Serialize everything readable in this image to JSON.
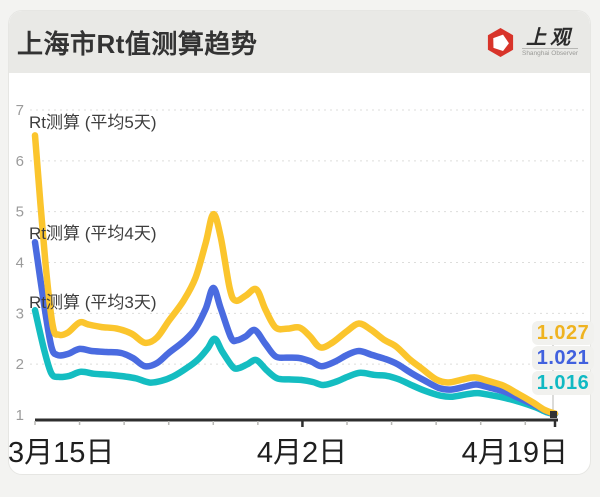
{
  "header": {
    "title": "上海市Rt值测算趋势",
    "logo": {
      "cn_text": "上观",
      "sub_text": "Shanghai Observer",
      "icon": "shanghai-observer-red-hexagon",
      "brand_color": "#d8342a"
    }
  },
  "chart_data": {
    "type": "line",
    "title": "上海市Rt值测算趋势",
    "x_axis": {
      "unit": "day index from 3月15日",
      "range_days": [
        0,
        35
      ],
      "labels": [
        "3月15日",
        "4月2日",
        "4月19日"
      ],
      "label_days": [
        0,
        18,
        35
      ],
      "minor_tick_days": [
        0,
        3,
        6,
        9,
        12,
        15,
        18,
        21,
        24,
        27,
        30,
        33
      ],
      "major_tick_days": [
        18,
        35
      ]
    },
    "y_axis": {
      "ticks": [
        1,
        2,
        3,
        4,
        5,
        6,
        7
      ],
      "range": [
        1,
        7
      ],
      "gridlines": "dashed, values 2-7",
      "grid_color": "#dddddb",
      "axis_color": "#2e2e2e",
      "tick_label_color": "#9b9b9b"
    },
    "end_marker_color": "#333333",
    "series": [
      {
        "name": "Rt测算 (平均5天)",
        "color": "#fbc52d",
        "label_color": "#efb320",
        "end_label": "1.027",
        "end_value": 1.027,
        "points": [
          [
            0,
            6.5
          ],
          [
            0.7,
            4.0
          ],
          [
            1.2,
            2.75
          ],
          [
            1.6,
            2.58
          ],
          [
            2.2,
            2.62
          ],
          [
            3.0,
            2.82
          ],
          [
            3.6,
            2.78
          ],
          [
            4.5,
            2.73
          ],
          [
            5.5,
            2.7
          ],
          [
            6.5,
            2.6
          ],
          [
            7.4,
            2.42
          ],
          [
            8.2,
            2.52
          ],
          [
            9.0,
            2.85
          ],
          [
            10.0,
            3.25
          ],
          [
            10.8,
            3.7
          ],
          [
            11.5,
            4.4
          ],
          [
            12.0,
            4.95
          ],
          [
            12.5,
            4.5
          ],
          [
            13.1,
            3.5
          ],
          [
            13.5,
            3.25
          ],
          [
            14.2,
            3.35
          ],
          [
            14.9,
            3.47
          ],
          [
            15.5,
            3.08
          ],
          [
            16.2,
            2.72
          ],
          [
            17.0,
            2.7
          ],
          [
            17.8,
            2.72
          ],
          [
            18.5,
            2.55
          ],
          [
            19.2,
            2.33
          ],
          [
            20.0,
            2.42
          ],
          [
            21.0,
            2.65
          ],
          [
            21.8,
            2.8
          ],
          [
            22.6,
            2.68
          ],
          [
            23.5,
            2.48
          ],
          [
            24.3,
            2.35
          ],
          [
            25.2,
            2.1
          ],
          [
            26.0,
            1.92
          ],
          [
            27.0,
            1.7
          ],
          [
            27.8,
            1.64
          ],
          [
            28.8,
            1.7
          ],
          [
            29.6,
            1.74
          ],
          [
            30.5,
            1.67
          ],
          [
            31.5,
            1.58
          ],
          [
            32.5,
            1.42
          ],
          [
            33.5,
            1.25
          ],
          [
            34.3,
            1.1
          ],
          [
            35,
            1.027
          ]
        ]
      },
      {
        "name": "Rt测算 (平均4天)",
        "color": "#4a6be0",
        "label_color": "#4161de",
        "end_label": "1.021",
        "end_value": 1.021,
        "points": [
          [
            0,
            4.4
          ],
          [
            0.6,
            3.2
          ],
          [
            1.1,
            2.35
          ],
          [
            1.5,
            2.18
          ],
          [
            2.2,
            2.2
          ],
          [
            3.0,
            2.3
          ],
          [
            3.8,
            2.26
          ],
          [
            4.8,
            2.24
          ],
          [
            5.8,
            2.22
          ],
          [
            6.6,
            2.12
          ],
          [
            7.4,
            1.96
          ],
          [
            8.2,
            2.02
          ],
          [
            9.0,
            2.22
          ],
          [
            10.0,
            2.45
          ],
          [
            10.8,
            2.7
          ],
          [
            11.5,
            3.1
          ],
          [
            12.0,
            3.5
          ],
          [
            12.5,
            3.1
          ],
          [
            13.2,
            2.52
          ],
          [
            13.6,
            2.47
          ],
          [
            14.2,
            2.55
          ],
          [
            14.8,
            2.67
          ],
          [
            15.5,
            2.4
          ],
          [
            16.2,
            2.15
          ],
          [
            17.0,
            2.13
          ],
          [
            17.8,
            2.12
          ],
          [
            18.6,
            2.05
          ],
          [
            19.3,
            1.96
          ],
          [
            20.2,
            2.05
          ],
          [
            21.0,
            2.18
          ],
          [
            21.8,
            2.26
          ],
          [
            22.7,
            2.18
          ],
          [
            23.6,
            2.1
          ],
          [
            24.4,
            2.0
          ],
          [
            25.3,
            1.83
          ],
          [
            26.2,
            1.68
          ],
          [
            27.2,
            1.53
          ],
          [
            28.0,
            1.5
          ],
          [
            29.0,
            1.56
          ],
          [
            29.7,
            1.6
          ],
          [
            30.6,
            1.54
          ],
          [
            31.6,
            1.46
          ],
          [
            32.6,
            1.33
          ],
          [
            33.6,
            1.2
          ],
          [
            34.4,
            1.08
          ],
          [
            35,
            1.021
          ]
        ]
      },
      {
        "name": "Rt测算 (平均3天)",
        "color": "#14bdc1",
        "label_color": "#10b9c3",
        "end_label": "1.016",
        "end_value": 1.016,
        "points": [
          [
            0,
            3.06
          ],
          [
            0.6,
            2.3
          ],
          [
            1.1,
            1.82
          ],
          [
            1.6,
            1.75
          ],
          [
            2.3,
            1.77
          ],
          [
            3.1,
            1.85
          ],
          [
            4.0,
            1.81
          ],
          [
            5.0,
            1.79
          ],
          [
            6.0,
            1.76
          ],
          [
            6.8,
            1.72
          ],
          [
            7.7,
            1.64
          ],
          [
            8.5,
            1.67
          ],
          [
            9.3,
            1.76
          ],
          [
            10.2,
            1.92
          ],
          [
            11.0,
            2.1
          ],
          [
            11.6,
            2.3
          ],
          [
            12.1,
            2.5
          ],
          [
            12.6,
            2.25
          ],
          [
            13.3,
            1.95
          ],
          [
            13.7,
            1.92
          ],
          [
            14.3,
            2.0
          ],
          [
            14.9,
            2.08
          ],
          [
            15.6,
            1.88
          ],
          [
            16.3,
            1.72
          ],
          [
            17.1,
            1.7
          ],
          [
            17.9,
            1.69
          ],
          [
            18.7,
            1.65
          ],
          [
            19.4,
            1.59
          ],
          [
            20.3,
            1.66
          ],
          [
            21.1,
            1.76
          ],
          [
            21.9,
            1.83
          ],
          [
            22.8,
            1.79
          ],
          [
            23.7,
            1.77
          ],
          [
            24.5,
            1.7
          ],
          [
            25.4,
            1.58
          ],
          [
            26.3,
            1.47
          ],
          [
            27.3,
            1.38
          ],
          [
            28.1,
            1.36
          ],
          [
            29.1,
            1.41
          ],
          [
            29.8,
            1.43
          ],
          [
            30.7,
            1.39
          ],
          [
            31.7,
            1.33
          ],
          [
            32.7,
            1.25
          ],
          [
            33.7,
            1.15
          ],
          [
            34.4,
            1.06
          ],
          [
            35,
            1.016
          ]
        ]
      }
    ]
  }
}
